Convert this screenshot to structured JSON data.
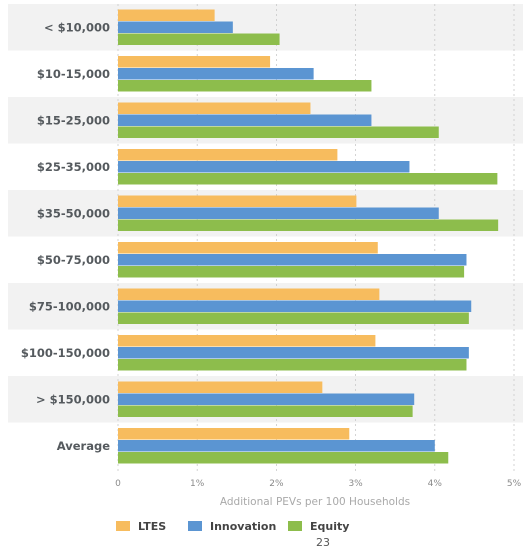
{
  "chart_data": {
    "type": "bar",
    "orientation": "horizontal",
    "categories": [
      "< $10,000",
      "$10-15,000",
      "$15-25,000",
      "$25-35,000",
      "$35-50,000",
      "$50-75,000",
      "$75-100,000",
      "$100-150,000",
      "> $150,000",
      "Average"
    ],
    "series": [
      {
        "name": "LTES",
        "color": "#f7bc5e",
        "values": [
          1.22,
          1.92,
          2.43,
          2.77,
          3.01,
          3.28,
          3.3,
          3.25,
          2.58,
          2.92
        ]
      },
      {
        "name": "Innovation",
        "color": "#5b95d2",
        "values": [
          1.45,
          2.47,
          3.2,
          3.68,
          4.05,
          4.4,
          4.46,
          4.43,
          3.74,
          4.0
        ]
      },
      {
        "name": "Equity",
        "color": "#8dbd4c",
        "values": [
          2.04,
          3.2,
          4.05,
          4.79,
          4.8,
          4.37,
          4.43,
          4.4,
          3.72,
          4.17
        ]
      }
    ],
    "xlabel": "Additional PEVs per 100 Households",
    "xlim": [
      0,
      5
    ],
    "xticks": [
      "0",
      "1%",
      "2%",
      "3%",
      "4%",
      "5%"
    ],
    "grid": true,
    "legend_position": "bottom-left",
    "band_colors": [
      "#f2f2f2",
      "#ffffff"
    ]
  },
  "page_number": "23"
}
